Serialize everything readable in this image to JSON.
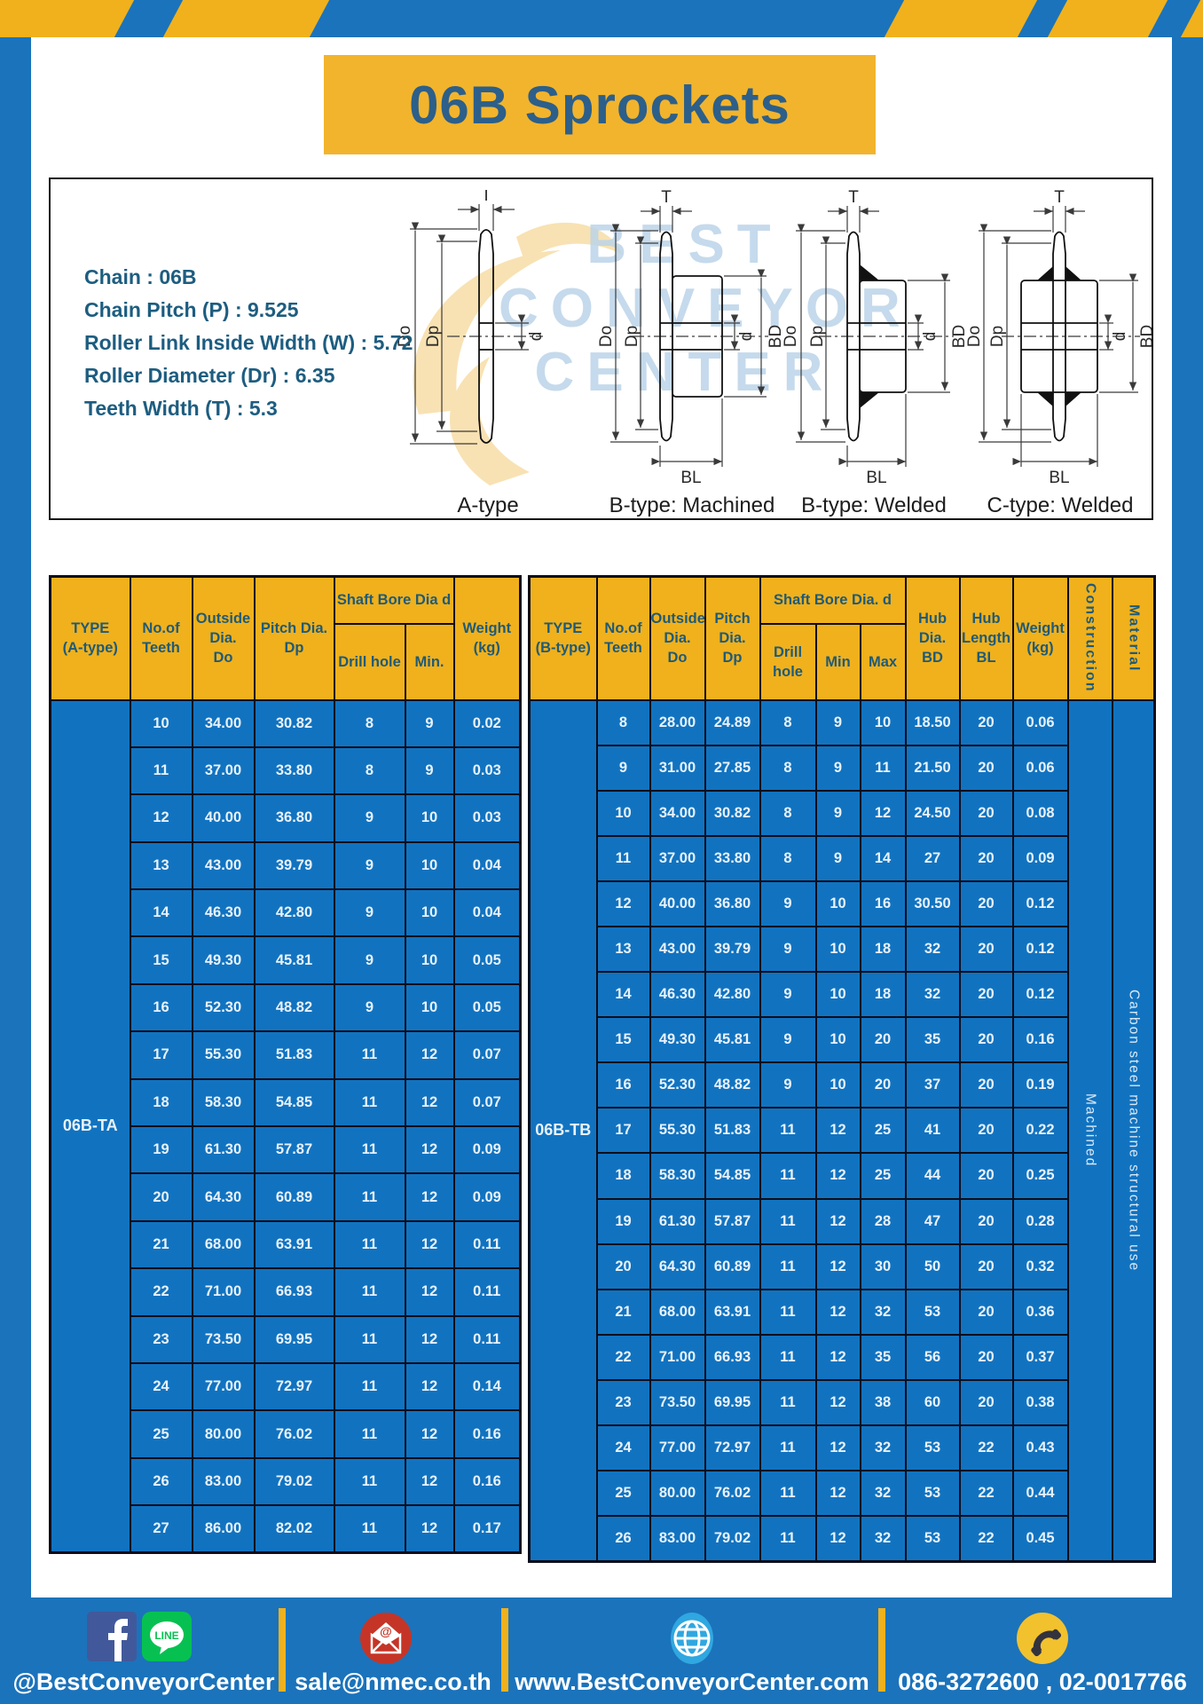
{
  "page": {
    "title": "06B Sprockets"
  },
  "specs": {
    "lines": [
      "Chain : 06B",
      "Chain Pitch (P) : 9.525",
      "Roller Link Inside Width (W) : 5.72",
      "Roller Diameter (Dr) : 6.35",
      "Teeth Width (T) : 5.3"
    ]
  },
  "watermark": {
    "line1": "BEST",
    "line2": "CONVEYOR",
    "line3": "CENTER"
  },
  "diagrams": {
    "dims": {
      "T": "T",
      "Do": "Do",
      "Dp": "Dp",
      "d": "d",
      "BD": "BD",
      "BL": "BL"
    },
    "captions": [
      "A-type",
      "B-type: Machined",
      "B-type: Welded",
      "C-type: Welded"
    ]
  },
  "tableA": {
    "type_label": "06B-TA",
    "headers": {
      "type": "TYPE\n(A-type)",
      "teeth": "No.of\nTeeth",
      "outside": "Outside\nDia.\nDo",
      "pitch": "Pitch Dia.\nDp",
      "bore_group": "Shaft Bore Dia d",
      "drill": "Drill hole",
      "min": "Min.",
      "weight": "Weight\n(kg)"
    },
    "rows": [
      [
        "10",
        "34.00",
        "30.82",
        "8",
        "9",
        "0.02"
      ],
      [
        "11",
        "37.00",
        "33.80",
        "8",
        "9",
        "0.03"
      ],
      [
        "12",
        "40.00",
        "36.80",
        "9",
        "10",
        "0.03"
      ],
      [
        "13",
        "43.00",
        "39.79",
        "9",
        "10",
        "0.04"
      ],
      [
        "14",
        "46.30",
        "42.80",
        "9",
        "10",
        "0.04"
      ],
      [
        "15",
        "49.30",
        "45.81",
        "9",
        "10",
        "0.05"
      ],
      [
        "16",
        "52.30",
        "48.82",
        "9",
        "10",
        "0.05"
      ],
      [
        "17",
        "55.30",
        "51.83",
        "11",
        "12",
        "0.07"
      ],
      [
        "18",
        "58.30",
        "54.85",
        "11",
        "12",
        "0.07"
      ],
      [
        "19",
        "61.30",
        "57.87",
        "11",
        "12",
        "0.09"
      ],
      [
        "20",
        "64.30",
        "60.89",
        "11",
        "12",
        "0.09"
      ],
      [
        "21",
        "68.00",
        "63.91",
        "11",
        "12",
        "0.11"
      ],
      [
        "22",
        "71.00",
        "66.93",
        "11",
        "12",
        "0.11"
      ],
      [
        "23",
        "73.50",
        "69.95",
        "11",
        "12",
        "0.11"
      ],
      [
        "24",
        "77.00",
        "72.97",
        "11",
        "12",
        "0.14"
      ],
      [
        "25",
        "80.00",
        "76.02",
        "11",
        "12",
        "0.16"
      ],
      [
        "26",
        "83.00",
        "79.02",
        "11",
        "12",
        "0.16"
      ],
      [
        "27",
        "86.00",
        "82.02",
        "11",
        "12",
        "0.17"
      ]
    ]
  },
  "tableB": {
    "type_label": "06B-TB",
    "headers": {
      "type": "TYPE\n(B-type)",
      "teeth": "No.of\nTeeth",
      "outside": "Outside\nDia.\nDo",
      "pitch": "Pitch\nDia.\nDp",
      "bore_group": "Shaft Bore Dia.  d",
      "drill": "Drill hole",
      "min": "Min",
      "max": "Max",
      "hub_dia": "Hub\nDia.\nBD",
      "hub_len": "Hub\nLength\nBL",
      "weight": "Weight\n(kg)",
      "construction": "Construction",
      "material": "Material"
    },
    "construction_value": "Machined",
    "material_value": "Carbon steel machine structural use",
    "rows": [
      [
        "8",
        "28.00",
        "24.89",
        "8",
        "9",
        "10",
        "18.50",
        "20",
        "0.06"
      ],
      [
        "9",
        "31.00",
        "27.85",
        "8",
        "9",
        "11",
        "21.50",
        "20",
        "0.06"
      ],
      [
        "10",
        "34.00",
        "30.82",
        "8",
        "9",
        "12",
        "24.50",
        "20",
        "0.08"
      ],
      [
        "11",
        "37.00",
        "33.80",
        "8",
        "9",
        "14",
        "27",
        "20",
        "0.09"
      ],
      [
        "12",
        "40.00",
        "36.80",
        "9",
        "10",
        "16",
        "30.50",
        "20",
        "0.12"
      ],
      [
        "13",
        "43.00",
        "39.79",
        "9",
        "10",
        "18",
        "32",
        "20",
        "0.12"
      ],
      [
        "14",
        "46.30",
        "42.80",
        "9",
        "10",
        "18",
        "32",
        "20",
        "0.12"
      ],
      [
        "15",
        "49.30",
        "45.81",
        "9",
        "10",
        "20",
        "35",
        "20",
        "0.16"
      ],
      [
        "16",
        "52.30",
        "48.82",
        "9",
        "10",
        "20",
        "37",
        "20",
        "0.19"
      ],
      [
        "17",
        "55.30",
        "51.83",
        "11",
        "12",
        "25",
        "41",
        "20",
        "0.22"
      ],
      [
        "18",
        "58.30",
        "54.85",
        "11",
        "12",
        "25",
        "44",
        "20",
        "0.25"
      ],
      [
        "19",
        "61.30",
        "57.87",
        "11",
        "12",
        "28",
        "47",
        "20",
        "0.28"
      ],
      [
        "20",
        "64.30",
        "60.89",
        "11",
        "12",
        "30",
        "50",
        "20",
        "0.32"
      ],
      [
        "21",
        "68.00",
        "63.91",
        "11",
        "12",
        "32",
        "53",
        "20",
        "0.36"
      ],
      [
        "22",
        "71.00",
        "66.93",
        "11",
        "12",
        "35",
        "56",
        "20",
        "0.37"
      ],
      [
        "23",
        "73.50",
        "69.95",
        "11",
        "12",
        "38",
        "60",
        "20",
        "0.38"
      ],
      [
        "24",
        "77.00",
        "72.97",
        "11",
        "12",
        "32",
        "53",
        "22",
        "0.43"
      ],
      [
        "25",
        "80.00",
        "76.02",
        "11",
        "12",
        "32",
        "53",
        "22",
        "0.44"
      ],
      [
        "26",
        "83.00",
        "79.02",
        "11",
        "12",
        "32",
        "53",
        "22",
        "0.45"
      ]
    ]
  },
  "footer": {
    "social": "@BestConveyorCenter",
    "line_label": "LINE",
    "email": "sale@nmec.co.th",
    "website": "www.BestConveyorCenter.com",
    "phone": "086-3272600 , 02-0017766"
  },
  "colors": {
    "frame_blue": "#1b73bb",
    "cell_blue": "#1173c0",
    "accent_yellow": "#f0b11c",
    "banner_yellow": "#f2b42c",
    "title_text": "#2c5f8a",
    "header_text": "#1f5a78"
  }
}
